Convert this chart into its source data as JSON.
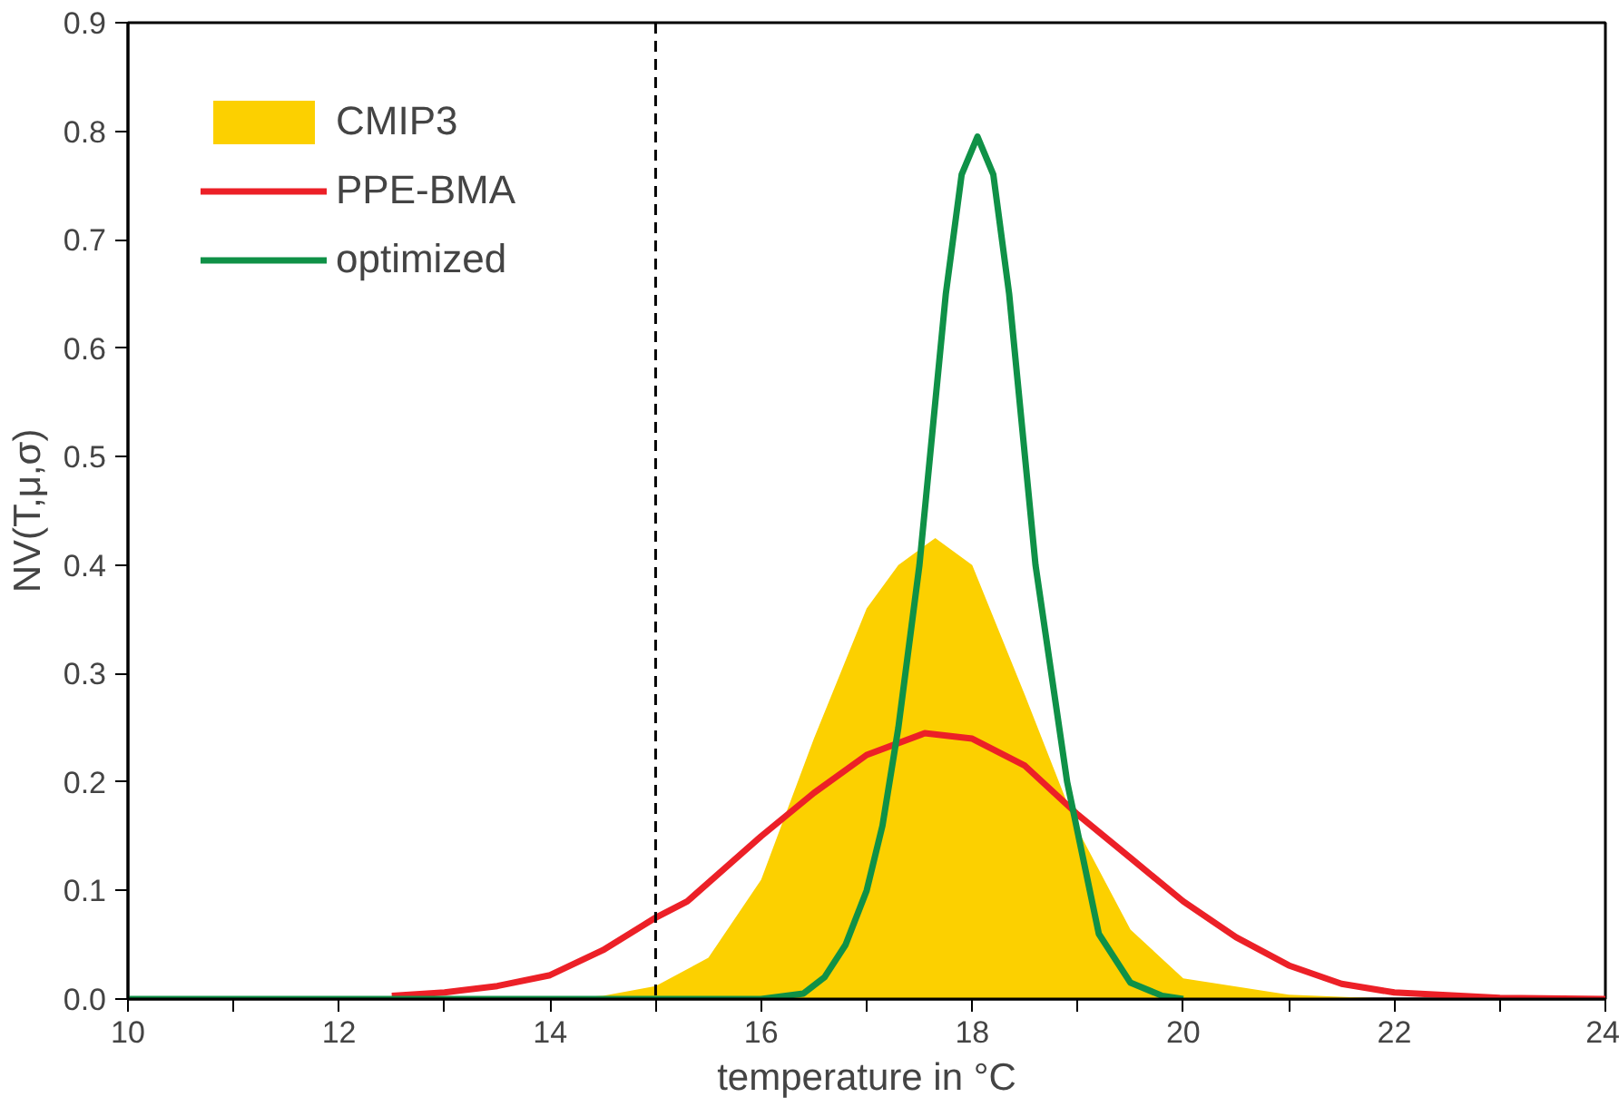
{
  "chart_data": {
    "type": "line",
    "xlabel": "temperature in °C",
    "ylabel": "NV(T,μ,σ)",
    "xlim": [
      10,
      24
    ],
    "ylim": [
      0,
      0.9
    ],
    "xticks": [
      10,
      {
        "value": 11,
        "label": null
      },
      12,
      {
        "value": 13,
        "label": null
      },
      14,
      {
        "value": 15,
        "label": null
      },
      16,
      {
        "value": 17,
        "label": null
      },
      18,
      {
        "value": 19,
        "label": null
      },
      20,
      {
        "value": 21,
        "label": null
      },
      22,
      {
        "value": 23,
        "label": null
      },
      24
    ],
    "yticks": [
      {
        "value": 0,
        "label": "0.0"
      },
      0.1,
      0.2,
      0.3,
      0.4,
      0.5,
      0.6,
      0.7,
      0.8,
      0.9
    ],
    "grid": false,
    "legend": "top left",
    "ref_lines": [
      {
        "axis": "x",
        "value": 15,
        "label": null,
        "color": "#000000",
        "line_style": "dashed"
      }
    ],
    "series": [
      {
        "name": "CMIP3",
        "type": "area",
        "color": "#fcd000",
        "x": [
          10,
          14,
          14.5,
          15,
          15.5,
          16,
          16.5,
          17,
          17.3,
          17.65,
          18,
          18.5,
          19,
          19.5,
          20,
          21,
          22,
          24
        ],
        "values": [
          0,
          0,
          0.003,
          0.012,
          0.038,
          0.11,
          0.24,
          0.36,
          0.4,
          0.425,
          0.4,
          0.28,
          0.156,
          0.064,
          0.019,
          0.004,
          0,
          0
        ]
      },
      {
        "name": "PPE-BMA",
        "color": "#ec2027",
        "x": [
          12.5,
          13,
          13.5,
          14,
          14.5,
          15,
          15.3,
          16,
          16.5,
          17,
          17.55,
          18,
          18.5,
          19,
          19.5,
          20,
          20.5,
          21,
          21.5,
          22,
          23,
          24
        ],
        "values": [
          0.003,
          0.006,
          0.012,
          0.022,
          0.045,
          0.075,
          0.09,
          0.15,
          0.19,
          0.225,
          0.245,
          0.24,
          0.215,
          0.17,
          0.13,
          0.09,
          0.057,
          0.031,
          0.014,
          0.006,
          0.001,
          0
        ]
      },
      {
        "name": "optimized",
        "color": "#0f9147",
        "x": [
          10,
          16,
          16.4,
          16.6,
          16.8,
          17,
          17.15,
          17.3,
          17.5,
          17.75,
          17.9,
          18.05,
          18.2,
          18.35,
          18.6,
          18.9,
          19.2,
          19.5,
          19.8,
          20
        ],
        "values": [
          0,
          0,
          0.005,
          0.02,
          0.05,
          0.1,
          0.16,
          0.25,
          0.4,
          0.65,
          0.76,
          0.795,
          0.76,
          0.65,
          0.4,
          0.2,
          0.06,
          0.015,
          0.003,
          0
        ]
      }
    ]
  }
}
